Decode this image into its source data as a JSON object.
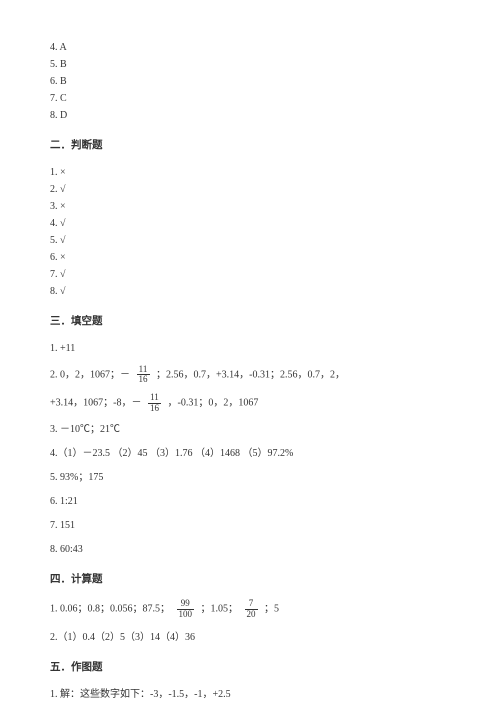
{
  "section1_answers": {
    "a4": "4. A",
    "a5": "5. B",
    "a6": "6. B",
    "a7": "7. C",
    "a8": "8. D"
  },
  "section2": {
    "title": "二．判断题",
    "a1": "1. ×",
    "a2": "2. √",
    "a3": "3. ×",
    "a4": "4. √",
    "a5": "5. √",
    "a6": "6. ×",
    "a7": "7. √",
    "a8": "8. √"
  },
  "section3": {
    "title": "三．填空题",
    "a1": "1. +11",
    "a2_p1": "2. 0，2，1067；－",
    "a2_frac1_num": "11",
    "a2_frac1_den": "16",
    "a2_p2": "；2.56，0.7，+3.14，-0.31；2.56，0.7，2，",
    "a2_p3": "+3.14，1067；-8，－",
    "a2_frac2_num": "11",
    "a2_frac2_den": "16",
    "a2_p4": "，-0.31；0，2，1067",
    "a3": "3. －10℃；21℃",
    "a4": "4.（1）－23.5  （2）45  （3）1.76  （4）1468  （5）97.2%",
    "a5": "5. 93%；175",
    "a6": "6. 1:21",
    "a7": "7. 151",
    "a8": "8. 60:43"
  },
  "section4": {
    "title": "四．计算题",
    "a1_p1": "1. 0.06；0.8；0.056；87.5；",
    "a1_frac1_num": "99",
    "a1_frac1_den": "100",
    "a1_p2": "；1.05；",
    "a1_frac2_num": "7",
    "a1_frac2_den": "20",
    "a1_p3": "；5",
    "a2": "2.（1）0.4（2）5（3）14（4）36"
  },
  "section5": {
    "title": "五．作图题",
    "a1": "1. 解：这些数字如下：-3，-1.5，-1，+2.5"
  }
}
